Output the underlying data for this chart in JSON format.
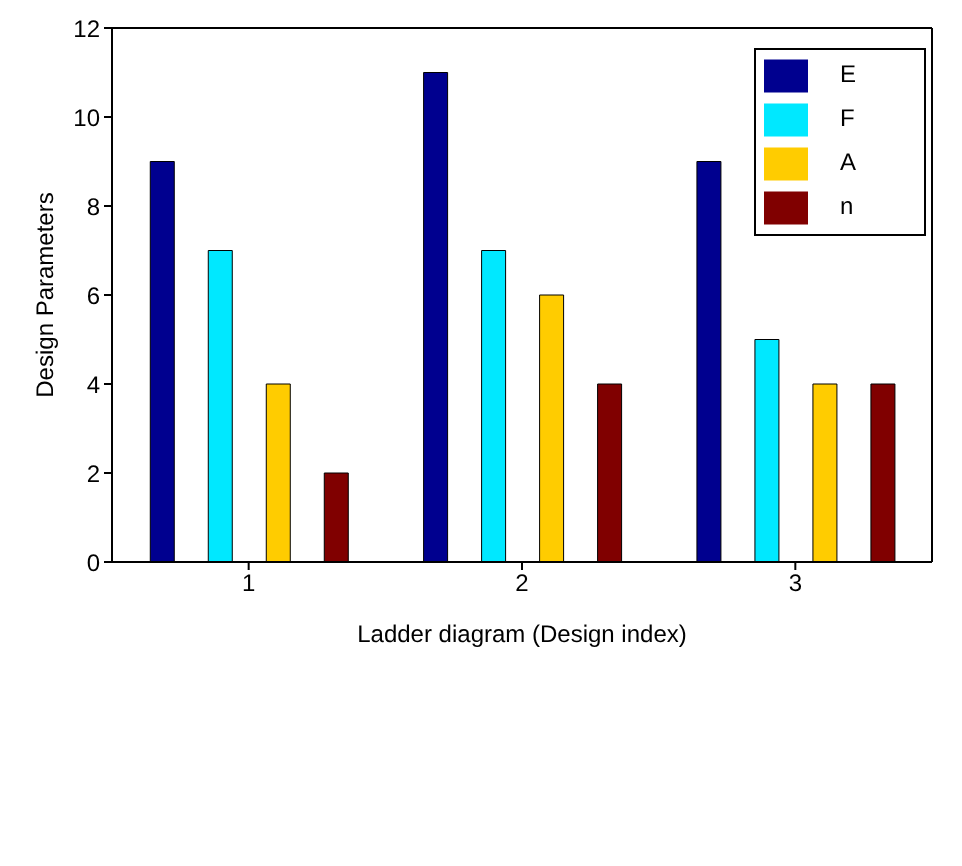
{
  "chart_data": {
    "type": "bar",
    "xlabel": "Ladder diagram (Design index)",
    "ylabel": "Design Parameters",
    "categories": [
      "1",
      "2",
      "3"
    ],
    "series": [
      {
        "name": "E",
        "color": "#00008f",
        "values": [
          9,
          11,
          9
        ]
      },
      {
        "name": "F",
        "color": "#00e8ff",
        "values": [
          7,
          7,
          5
        ]
      },
      {
        "name": "A",
        "color": "#ffcc00",
        "values": [
          4,
          6,
          4
        ]
      },
      {
        "name": "n",
        "color": "#800000",
        "values": [
          2,
          4,
          4
        ]
      }
    ],
    "ylim": [
      0,
      12
    ],
    "yticks": [
      0,
      2,
      4,
      6,
      8,
      10,
      12
    ],
    "grid": false,
    "legend": "top right"
  }
}
